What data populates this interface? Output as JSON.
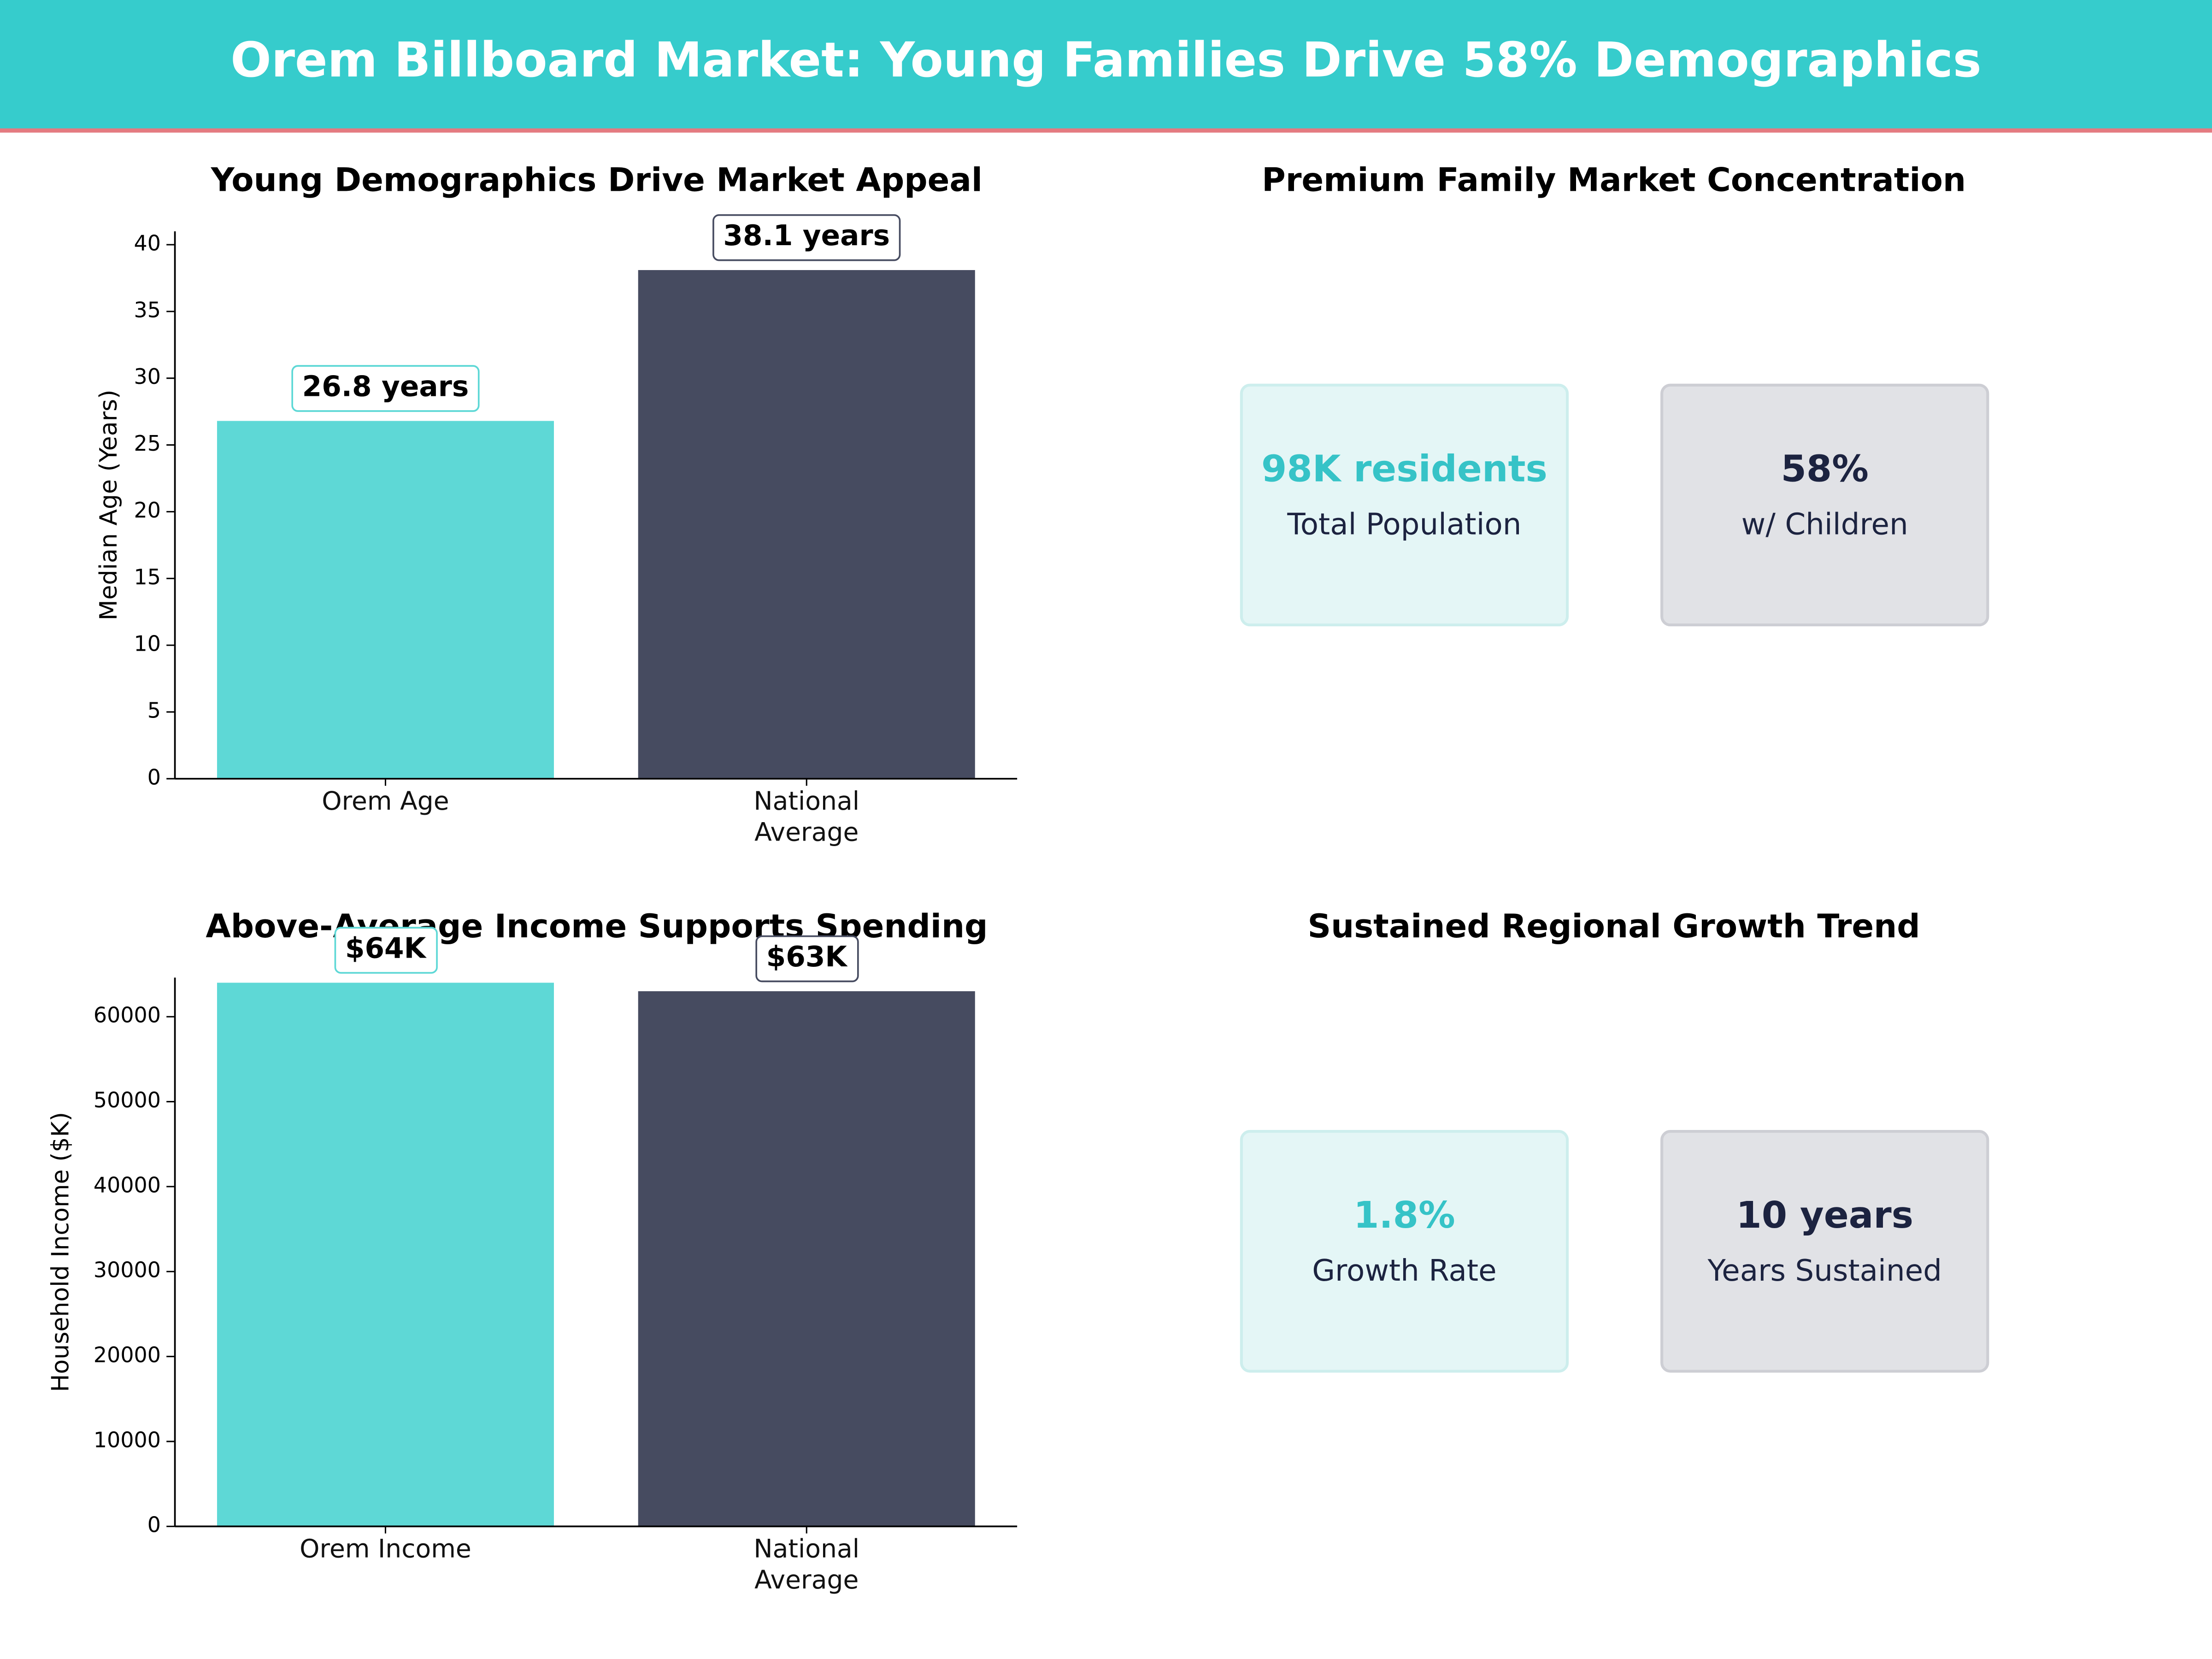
{
  "title": "Orem Billboard Market: Young Families Drive 58% Demographics",
  "chart_data": [
    {
      "type": "bar",
      "title": "Young Demographics Drive Market Appeal",
      "ylabel": "Median Age (Years)",
      "categories": [
        "Orem Age",
        "National\nAverage"
      ],
      "values": [
        26.8,
        38.1
      ],
      "value_labels": [
        "26.8 years",
        "38.1 years"
      ],
      "colors": [
        "#5ed8d6",
        "#464b60"
      ],
      "ylim": [
        0,
        41
      ],
      "yticks": [
        0,
        5,
        10,
        15,
        20,
        25,
        30,
        35,
        40
      ]
    },
    {
      "type": "bar",
      "title": "Above-Average Income Supports Spending",
      "ylabel": "Household Income ($K)",
      "categories": [
        "Orem Income",
        "National\nAverage"
      ],
      "values": [
        64000,
        63000
      ],
      "value_labels": [
        "$64K",
        "$63K"
      ],
      "colors": [
        "#5ed8d6",
        "#464b60"
      ],
      "ylim": [
        0,
        64600
      ],
      "yticks": [
        0,
        10000,
        20000,
        30000,
        40000,
        50000,
        60000
      ]
    }
  ],
  "panels": [
    {
      "title": "Premium Family Market Concentration",
      "cards": [
        {
          "value": "98K residents",
          "label": "Total Population"
        },
        {
          "value": "58%",
          "label": "w/ Children"
        }
      ]
    },
    {
      "title": "Sustained Regional Growth Trend",
      "cards": [
        {
          "value": "1.8%",
          "label": "Growth Rate"
        },
        {
          "value": "10 years",
          "label": "Years Sustained"
        }
      ]
    }
  ]
}
